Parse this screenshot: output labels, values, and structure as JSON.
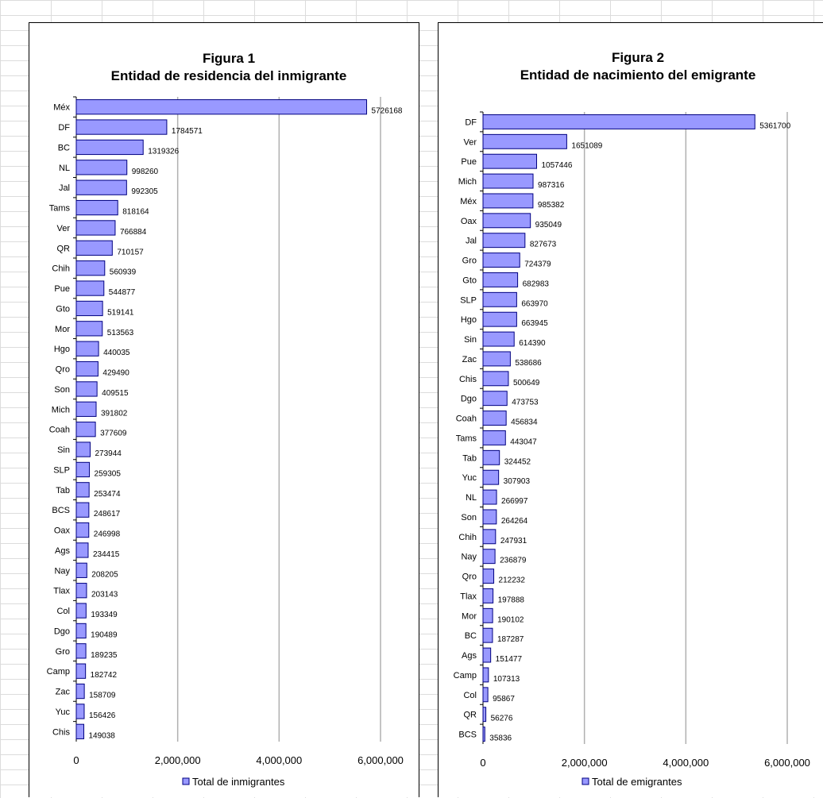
{
  "chart_data": [
    {
      "type": "bar",
      "orientation": "horizontal",
      "title": "Figura 1",
      "subtitle": "Entidad de residencia del  inmigrante",
      "categories": [
        "Méx",
        "DF",
        "BC",
        "NL",
        "Jal",
        "Tams",
        "Ver",
        "QR",
        "Chih",
        "Pue",
        "Gto",
        "Mor",
        "Hgo",
        "Qro",
        "Son",
        "Mich",
        "Coah",
        "Sin",
        "SLP",
        "Tab",
        "BCS",
        "Oax",
        "Ags",
        "Nay",
        "Tlax",
        "Col",
        "Dgo",
        "Gro",
        "Camp",
        "Zac",
        "Yuc",
        "Chis"
      ],
      "values": [
        5726168,
        1784571,
        1319326,
        998260,
        992305,
        818164,
        766884,
        710157,
        560939,
        544877,
        519141,
        513563,
        440035,
        429490,
        409515,
        391802,
        377609,
        273944,
        259305,
        253474,
        248617,
        246998,
        234415,
        208205,
        203143,
        193349,
        190489,
        189235,
        182742,
        158709,
        156426,
        149038
      ],
      "value_labels": [
        "5726168",
        "1784571",
        "1319326",
        "998260",
        "992305",
        "818164",
        "766884",
        "710157",
        "560939",
        "544877",
        "519141",
        "513563",
        "440035",
        "429490",
        "409515",
        "391802",
        "377609",
        "273944",
        "259305",
        "253474",
        "248617",
        "246998",
        "234415",
        "208205",
        "203143",
        "193349",
        "190489",
        "189235",
        "182742",
        "158709",
        "156426",
        "149038"
      ],
      "series": [
        {
          "name": "Total de inmigrantes"
        }
      ],
      "xlim": [
        0,
        6000000
      ],
      "x_ticks": [
        0,
        2000000,
        4000000,
        6000000
      ],
      "x_tick_labels": [
        "0",
        "2,000,000",
        "4,000,000",
        "6,000,000"
      ],
      "grid": "vertical",
      "legend": "bottom",
      "bar_color": "#9999ff",
      "bar_edge": "#000080"
    },
    {
      "type": "bar",
      "orientation": "horizontal",
      "title": "Figura 2",
      "subtitle": "Entidad de nacimiento del emigrante",
      "categories": [
        "DF",
        "Ver",
        "Pue",
        "Mich",
        "Méx",
        "Oax",
        "Jal",
        "Gro",
        "Gto",
        "SLP",
        "Hgo",
        "Sin",
        "Zac",
        "Chis",
        "Dgo",
        "Coah",
        "Tams",
        "Tab",
        "Yuc",
        "NL",
        "Son",
        "Chih",
        "Nay",
        "Qro",
        "Tlax",
        "Mor",
        "BC",
        "Ags",
        "Camp",
        "Col",
        "QR",
        "BCS"
      ],
      "values": [
        5361700,
        1651089,
        1057446,
        987316,
        985382,
        935049,
        827673,
        724379,
        682983,
        663970,
        663945,
        614390,
        538686,
        500649,
        473753,
        456834,
        443047,
        324452,
        307903,
        266997,
        264264,
        247931,
        236879,
        212232,
        197888,
        190102,
        187287,
        151477,
        107313,
        95867,
        56276,
        35836
      ],
      "value_labels": [
        "5361700",
        "1651089",
        "1057446",
        "987316",
        "985382",
        "935049",
        "827673",
        "724379",
        "682983",
        "663970",
        "663945",
        "614390",
        "538686",
        "500649",
        "473753",
        "456834",
        "443047",
        "324452",
        "307903",
        "266997",
        "264264",
        "247931",
        "236879",
        "212232",
        "197888",
        "190102",
        "187287",
        "151477",
        "107313",
        "95867",
        "56276",
        "35836"
      ],
      "series": [
        {
          "name": "Total de emigrantes"
        }
      ],
      "xlim": [
        0,
        6000000
      ],
      "x_ticks": [
        0,
        2000000,
        4000000,
        6000000
      ],
      "x_tick_labels": [
        "0",
        "2,000,000",
        "4,000,000",
        "6,000,000"
      ],
      "grid": "vertical",
      "legend": "bottom",
      "bar_color": "#9999ff",
      "bar_edge": "#000080"
    }
  ]
}
